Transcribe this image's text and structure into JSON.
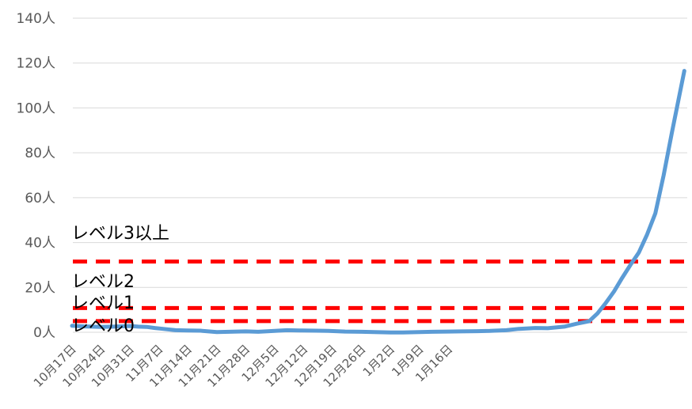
{
  "chart_data": {
    "type": "line",
    "ylim": [
      0,
      140
    ],
    "y_ticks": [
      "0人",
      "20人",
      "40人",
      "60人",
      "80人",
      "100人",
      "120人",
      "140人"
    ],
    "y_tick_values": [
      0,
      20,
      40,
      60,
      80,
      100,
      120,
      140
    ],
    "x_start": "10月17日",
    "x_tick_labels": [
      "10月17日",
      "10月24日",
      "10月31日",
      "11月7日",
      "11月14日",
      "11月21日",
      "11月28日",
      "12月5日",
      "12月12日",
      "12月19日",
      "12月26日",
      "1月2日",
      "1月9日",
      "1月16日"
    ],
    "grid": "horizontal",
    "line_color": "#5B9BD5",
    "threshold_color": "#FF0000",
    "thresholds": [
      {
        "label": "レベル3以上",
        "value": 31.5
      },
      {
        "label": "レベル2",
        "value": 10.8
      },
      {
        "label": "レベル1",
        "value": 5.0
      },
      {
        "label": "レベル0",
        "value": null
      }
    ],
    "series": [
      {
        "values": [
          [
            0,
            2.9
          ],
          [
            3,
            2.6
          ],
          [
            7,
            2.4
          ],
          [
            10,
            2.5
          ],
          [
            14,
            2.8
          ],
          [
            16,
            2.5
          ],
          [
            18,
            2.4
          ],
          [
            20,
            1.9
          ],
          [
            22,
            1.5
          ],
          [
            25,
            0.9
          ],
          [
            28,
            0.8
          ],
          [
            31,
            0.7
          ],
          [
            35,
            0.1
          ],
          [
            38,
            0.2
          ],
          [
            42,
            0.4
          ],
          [
            45,
            0.2
          ],
          [
            49,
            0.6
          ],
          [
            52,
            0.9
          ],
          [
            55,
            0.8
          ],
          [
            59,
            0.7
          ],
          [
            62,
            0.6
          ],
          [
            66,
            0.3
          ],
          [
            70,
            0.2
          ],
          [
            73,
            0.1
          ],
          [
            77,
            -0.1
          ],
          [
            80,
            -0.1
          ],
          [
            84,
            0.1
          ],
          [
            87,
            0.2
          ],
          [
            91,
            0.3
          ],
          [
            94,
            0.4
          ],
          [
            98,
            0.5
          ],
          [
            101,
            0.6
          ],
          [
            105,
            0.9
          ],
          [
            108,
            1.5
          ],
          [
            112,
            1.9
          ],
          [
            115,
            1.8
          ],
          [
            119,
            2.5
          ],
          [
            122,
            3.8
          ],
          [
            125,
            4.9
          ],
          [
            127,
            8.4
          ],
          [
            129,
            13.0
          ],
          [
            131,
            18.2
          ],
          [
            133,
            24.3
          ],
          [
            135,
            30.1
          ],
          [
            137,
            35.5
          ],
          [
            139,
            43.6
          ],
          [
            141,
            53.0
          ],
          [
            143,
            70.0
          ],
          [
            145,
            89.0
          ],
          [
            148,
            116.5
          ]
        ]
      }
    ]
  }
}
